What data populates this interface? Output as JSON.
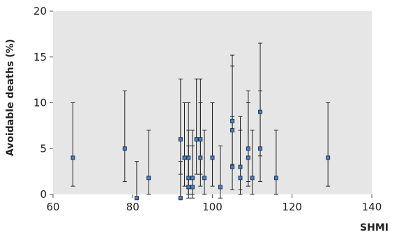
{
  "chart_data": {
    "type": "scatter",
    "title": "",
    "xlabel": "SHMI",
    "ylabel": "Avoidable deaths (%)",
    "xlim": [
      60,
      140
    ],
    "ylim": [
      0,
      20
    ],
    "x_ticks": [
      "60",
      "80",
      "100",
      "120",
      "140"
    ],
    "y_ticks": [
      "0",
      "5",
      "10",
      "15",
      "20"
    ],
    "grid": false,
    "background_color": "#e6e6e6",
    "marker_color": "#4a7fbf",
    "marker_edge_color": "#1f3550",
    "errorbar_color": "#222222",
    "points": [
      {
        "x": 65,
        "y": 4.0,
        "low": 0.9,
        "high": 10.0
      },
      {
        "x": 78,
        "y": 5.0,
        "low": 1.4,
        "high": 11.3
      },
      {
        "x": 81,
        "y": -0.4,
        "low": -0.4,
        "high": 3.6
      },
      {
        "x": 84,
        "y": 1.8,
        "low": 0.0,
        "high": 7.0
      },
      {
        "x": 92,
        "y": 6.0,
        "low": 2.2,
        "high": 12.6
      },
      {
        "x": 92,
        "y": -0.4,
        "low": -0.4,
        "high": 3.6
      },
      {
        "x": 93,
        "y": 4.0,
        "low": 0.9,
        "high": 10.0
      },
      {
        "x": 94,
        "y": 4.0,
        "low": 0.9,
        "high": 10.0
      },
      {
        "x": 94,
        "y": 1.8,
        "low": 0.0,
        "high": 7.0
      },
      {
        "x": 94,
        "y": 0.8,
        "low": -0.4,
        "high": 5.3
      },
      {
        "x": 95,
        "y": 0.8,
        "low": -0.4,
        "high": 5.3
      },
      {
        "x": 95,
        "y": 1.8,
        "low": 0.0,
        "high": 7.0
      },
      {
        "x": 96,
        "y": 6.0,
        "low": 2.2,
        "high": 12.6
      },
      {
        "x": 97,
        "y": 6.0,
        "low": 2.2,
        "high": 12.6
      },
      {
        "x": 97,
        "y": 4.0,
        "low": 0.9,
        "high": 10.0
      },
      {
        "x": 98,
        "y": 1.8,
        "low": 0.0,
        "high": 7.0
      },
      {
        "x": 100,
        "y": 4.0,
        "low": 0.9,
        "high": 10.0
      },
      {
        "x": 102,
        "y": 0.8,
        "low": -0.4,
        "high": 5.3
      },
      {
        "x": 105,
        "y": 8.0,
        "low": 3.3,
        "high": 15.2
      },
      {
        "x": 105,
        "y": 7.0,
        "low": 3.0,
        "high": 14.0
      },
      {
        "x": 105,
        "y": 3.0,
        "low": 0.5,
        "high": 8.5
      },
      {
        "x": 107,
        "y": 3.0,
        "low": 0.5,
        "high": 8.5
      },
      {
        "x": 107,
        "y": 1.8,
        "low": 0.0,
        "high": 7.0
      },
      {
        "x": 109,
        "y": 5.0,
        "low": 1.4,
        "high": 11.3
      },
      {
        "x": 109,
        "y": 4.0,
        "low": 0.9,
        "high": 10.0
      },
      {
        "x": 110,
        "y": 1.8,
        "low": 0.0,
        "high": 7.0
      },
      {
        "x": 112,
        "y": 9.0,
        "low": 4.2,
        "high": 16.5
      },
      {
        "x": 112,
        "y": 5.0,
        "low": 1.4,
        "high": 11.3
      },
      {
        "x": 116,
        "y": 1.8,
        "low": 0.0,
        "high": 7.0
      },
      {
        "x": 129,
        "y": 4.0,
        "low": 0.9,
        "high": 10.0
      }
    ]
  }
}
